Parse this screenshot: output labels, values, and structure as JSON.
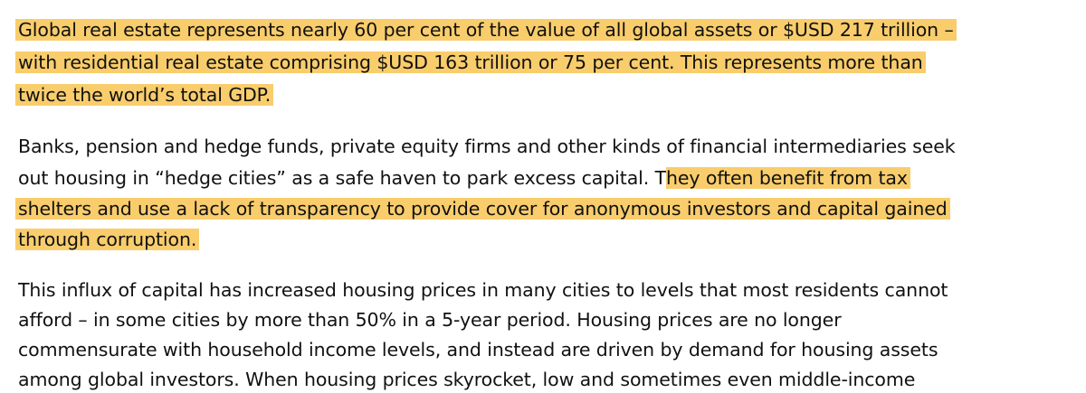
{
  "paragraph_1": {
    "lines": [
      "Global real estate represents nearly 60 per cent of the value of all global assets or $USD 217 trillion –",
      "with residential real estate comprising $USD 163 trillion or 75 per cent. This represents more than",
      "twice the world’s total GDP."
    ],
    "highlight_color": "#f9cd6c"
  },
  "paragraph_2": {
    "line1": "Banks, pension and hedge funds, private equity firms and other kinds of financial intermediaries seek",
    "line2_plain": "out housing in “hedge cities” as a safe haven to park excess capital. T",
    "line2_highlight": "hey often benefit from tax",
    "line3": "shelters and use a lack of transparency to provide cover for anonymous investors and capital gained",
    "line4": "through corruption."
  },
  "paragraph_3": {
    "lines": [
      "This influx of capital has increased housing prices in many cities to levels that most residents cannot",
      "afford – in some cities by more than 50% in a 5-year period. Housing prices are no longer",
      "commensurate with household income levels, and instead are driven by demand for housing assets",
      "among global investors. When housing prices skyrocket, low and sometimes even middle-income"
    ]
  }
}
